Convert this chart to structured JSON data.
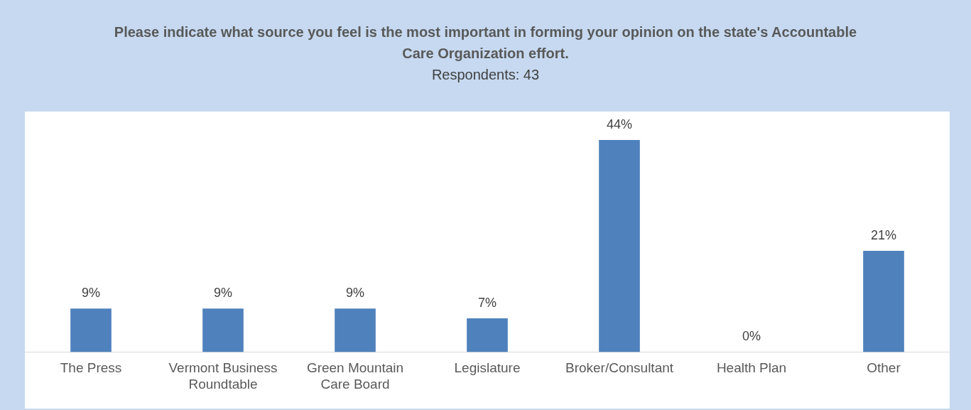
{
  "chart_data": {
    "type": "bar",
    "title": "Please indicate what source you feel is the most important in forming your opinion on the state's Accountable Care Organization effort.",
    "subtitle": "Respondents: 43",
    "categories": [
      "The Press",
      "Vermont Business Roundtable",
      "Green Mountain Care Board",
      "Legislature",
      "Broker/Consultant",
      "Health Plan",
      "Other"
    ],
    "values": [
      9,
      9,
      9,
      7,
      44,
      0,
      21
    ],
    "value_labels": [
      "9%",
      "9%",
      "9%",
      "7%",
      "44%",
      "0%",
      "21%"
    ],
    "color": "#4f81bd",
    "grid": false,
    "legend": false
  }
}
